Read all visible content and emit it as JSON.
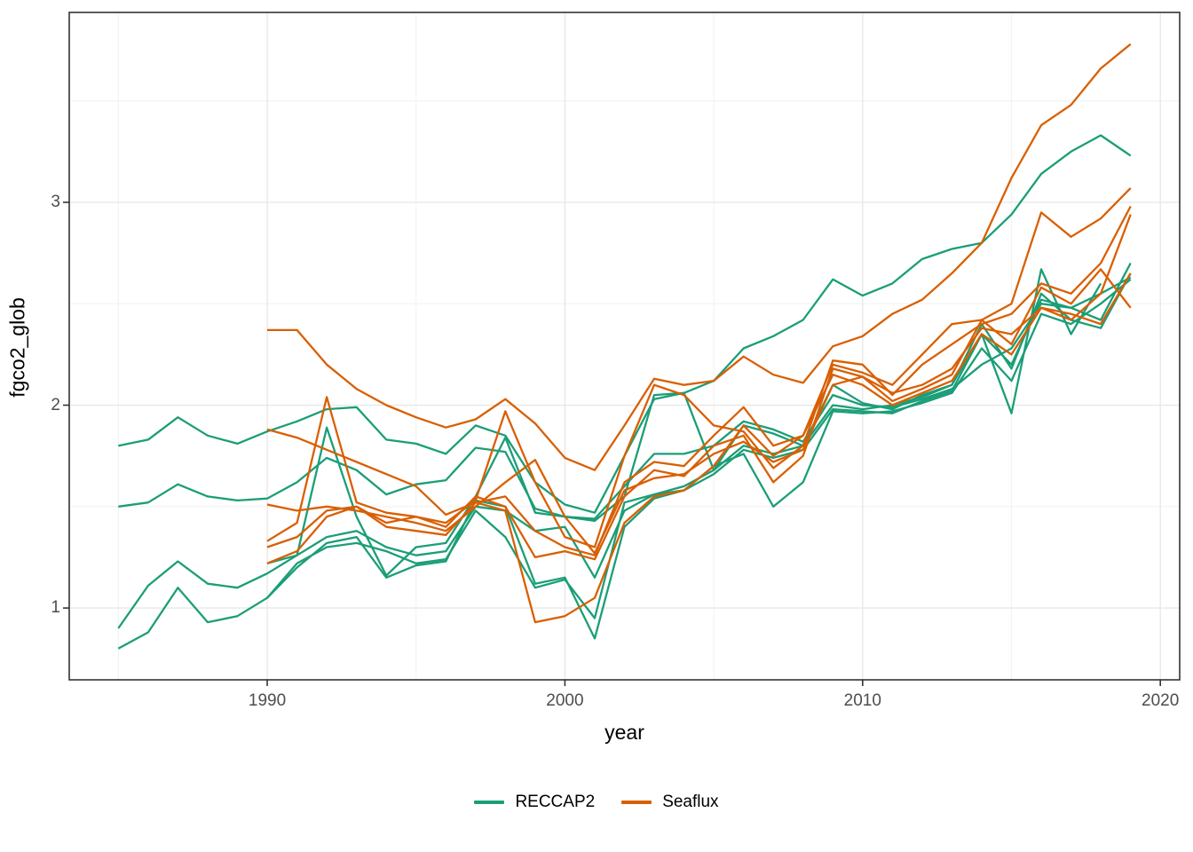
{
  "chart_data": {
    "type": "line",
    "title": "",
    "xlabel": "year",
    "ylabel": "fgco2_glob",
    "xlim": [
      1983.35,
      2020.65
    ],
    "ylim": [
      0.646,
      3.936
    ],
    "x_ticks": [
      1990,
      2000,
      2010,
      2020
    ],
    "x_minor_ticks": [
      1985,
      1995,
      2005,
      2015
    ],
    "y_ticks": [
      1,
      2,
      3
    ],
    "y_minor_ticks": [
      1.5,
      2.5,
      3.5
    ],
    "grid": true,
    "legend_position": "bottom",
    "colors": {
      "RECCAP2": "#1B9E77",
      "Seaflux": "#D95F02"
    },
    "legend": [
      {
        "label": "RECCAP2",
        "color": "#1B9E77"
      },
      {
        "label": "Seaflux",
        "color": "#D95F02"
      }
    ],
    "series": [
      {
        "group": "RECCAP2",
        "start_year": 1985,
        "end_year": 2019,
        "values": [
          1.8,
          1.83,
          1.94,
          1.85,
          1.81,
          1.87,
          1.92,
          1.98,
          1.99,
          1.83,
          1.81,
          1.76,
          1.9,
          1.85,
          1.62,
          1.51,
          1.47,
          1.75,
          2.03,
          2.06,
          2.12,
          2.28,
          2.34,
          2.42,
          2.62,
          2.54,
          2.6,
          2.72,
          2.77,
          2.8,
          2.94,
          3.14,
          3.25,
          3.33,
          3.23
        ]
      },
      {
        "group": "RECCAP2",
        "start_year": 1985,
        "end_year": 2019,
        "values": [
          1.5,
          1.52,
          1.61,
          1.55,
          1.53,
          1.54,
          1.62,
          1.74,
          1.68,
          1.56,
          1.61,
          1.63,
          1.79,
          1.77,
          1.49,
          1.45,
          1.44,
          1.6,
          1.76,
          1.76,
          1.8,
          1.92,
          1.88,
          1.82,
          2.05,
          2.0,
          1.99,
          2.03,
          2.08,
          2.2,
          2.28,
          2.5,
          2.48,
          2.55,
          2.63
        ]
      },
      {
        "group": "RECCAP2",
        "start_year": 1985,
        "end_year": 2019,
        "values": [
          0.9,
          1.11,
          1.23,
          1.12,
          1.1,
          1.17,
          1.26,
          1.35,
          1.38,
          1.3,
          1.26,
          1.28,
          1.5,
          1.48,
          1.38,
          1.4,
          1.15,
          1.48,
          1.56,
          1.58,
          1.66,
          1.78,
          1.74,
          1.78,
          1.98,
          1.97,
          1.96,
          2.02,
          2.07,
          2.35,
          2.2,
          2.52,
          2.48,
          2.42,
          2.7
        ]
      },
      {
        "group": "RECCAP2",
        "start_year": 1985,
        "end_year": 2019,
        "values": [
          0.8,
          0.88,
          1.1,
          0.93,
          0.96,
          1.05,
          1.2,
          1.32,
          1.35,
          1.15,
          1.21,
          1.23,
          1.53,
          1.5,
          1.12,
          1.15,
          0.85,
          1.4,
          1.54,
          1.58,
          1.7,
          1.76,
          1.5,
          1.62,
          1.97,
          1.96,
          1.97,
          2.01,
          2.06,
          2.28,
          2.12,
          2.45,
          2.4,
          2.5,
          2.62
        ]
      },
      {
        "group": "RECCAP2",
        "start_year": 1990,
        "end_year": 2018,
        "values": [
          1.22,
          1.26,
          1.89,
          1.45,
          1.16,
          1.3,
          1.32,
          1.55,
          1.84,
          1.47,
          1.45,
          1.43,
          1.55,
          2.05,
          2.06,
          1.68,
          1.9,
          1.86,
          1.8,
          2.1,
          2.01,
          1.98,
          2.05,
          2.1,
          2.35,
          1.96,
          2.67,
          2.35,
          2.6
        ]
      },
      {
        "group": "RECCAP2",
        "start_year": 1990,
        "end_year": 2019,
        "values": [
          1.05,
          1.22,
          1.3,
          1.32,
          1.28,
          1.22,
          1.24,
          1.48,
          1.35,
          1.1,
          1.14,
          0.95,
          1.52,
          1.56,
          1.6,
          1.68,
          1.8,
          1.76,
          1.8,
          2.0,
          1.98,
          2.0,
          2.04,
          2.1,
          2.4,
          2.18,
          2.55,
          2.42,
          2.38,
          2.65
        ]
      },
      {
        "group": "Seaflux",
        "start_year": 1990,
        "end_year": 2019,
        "values": [
          2.37,
          2.37,
          2.2,
          2.08,
          2.0,
          1.94,
          1.89,
          1.93,
          2.03,
          1.91,
          1.74,
          1.68,
          1.9,
          2.13,
          2.1,
          2.12,
          2.24,
          2.15,
          2.11,
          2.29,
          2.34,
          2.45,
          2.52,
          2.65,
          2.8,
          3.12,
          3.38,
          3.48,
          3.66,
          3.78
        ]
      },
      {
        "group": "Seaflux",
        "start_year": 1990,
        "end_year": 2019,
        "values": [
          1.88,
          1.84,
          1.78,
          1.72,
          1.66,
          1.6,
          1.46,
          1.52,
          1.55,
          1.38,
          1.3,
          1.26,
          1.62,
          1.72,
          1.7,
          1.85,
          1.99,
          1.8,
          1.85,
          2.2,
          2.16,
          2.1,
          2.25,
          2.4,
          2.42,
          2.5,
          2.95,
          2.83,
          2.92,
          3.07
        ]
      },
      {
        "group": "Seaflux",
        "start_year": 1990,
        "end_year": 2019,
        "values": [
          1.33,
          1.42,
          2.04,
          1.52,
          1.47,
          1.45,
          1.42,
          1.53,
          1.97,
          1.62,
          1.35,
          1.3,
          1.75,
          2.1,
          2.05,
          1.9,
          1.87,
          1.69,
          1.8,
          2.22,
          2.2,
          2.05,
          2.2,
          2.3,
          2.4,
          2.45,
          2.6,
          2.55,
          2.7,
          2.98
        ]
      },
      {
        "group": "Seaflux",
        "start_year": 1990,
        "end_year": 2019,
        "values": [
          1.51,
          1.48,
          1.5,
          1.48,
          1.45,
          1.42,
          1.38,
          1.5,
          1.62,
          1.73,
          1.45,
          1.27,
          1.58,
          1.64,
          1.66,
          1.76,
          1.82,
          1.72,
          1.78,
          2.1,
          2.14,
          2.06,
          2.1,
          2.18,
          2.38,
          2.35,
          2.48,
          2.42,
          2.55,
          2.94
        ]
      },
      {
        "group": "Seaflux",
        "start_year": 1990,
        "end_year": 2019,
        "values": [
          1.3,
          1.35,
          1.48,
          1.5,
          1.42,
          1.45,
          1.4,
          1.55,
          1.5,
          1.25,
          1.28,
          1.24,
          1.55,
          1.68,
          1.65,
          1.8,
          1.85,
          1.62,
          1.75,
          2.18,
          2.14,
          2.02,
          2.08,
          2.15,
          2.42,
          2.3,
          2.58,
          2.5,
          2.67,
          2.48
        ]
      },
      {
        "group": "Seaflux",
        "start_year": 1990,
        "end_year": 2019,
        "values": [
          1.22,
          1.28,
          1.45,
          1.5,
          1.4,
          1.38,
          1.36,
          1.52,
          1.48,
          0.93,
          0.96,
          1.05,
          1.42,
          1.55,
          1.58,
          1.7,
          1.9,
          1.75,
          1.85,
          2.15,
          2.1,
          2.0,
          2.06,
          2.12,
          2.35,
          2.25,
          2.48,
          2.45,
          2.4,
          2.65
        ]
      }
    ],
    "style": {
      "panel_border_color": "#333333",
      "major_grid_color": "#e8e8e8",
      "minor_grid_color": "#f3f3f3",
      "tick_color": "#333333",
      "tick_label_color": "#4d4d4d",
      "background": "#ffffff"
    }
  }
}
